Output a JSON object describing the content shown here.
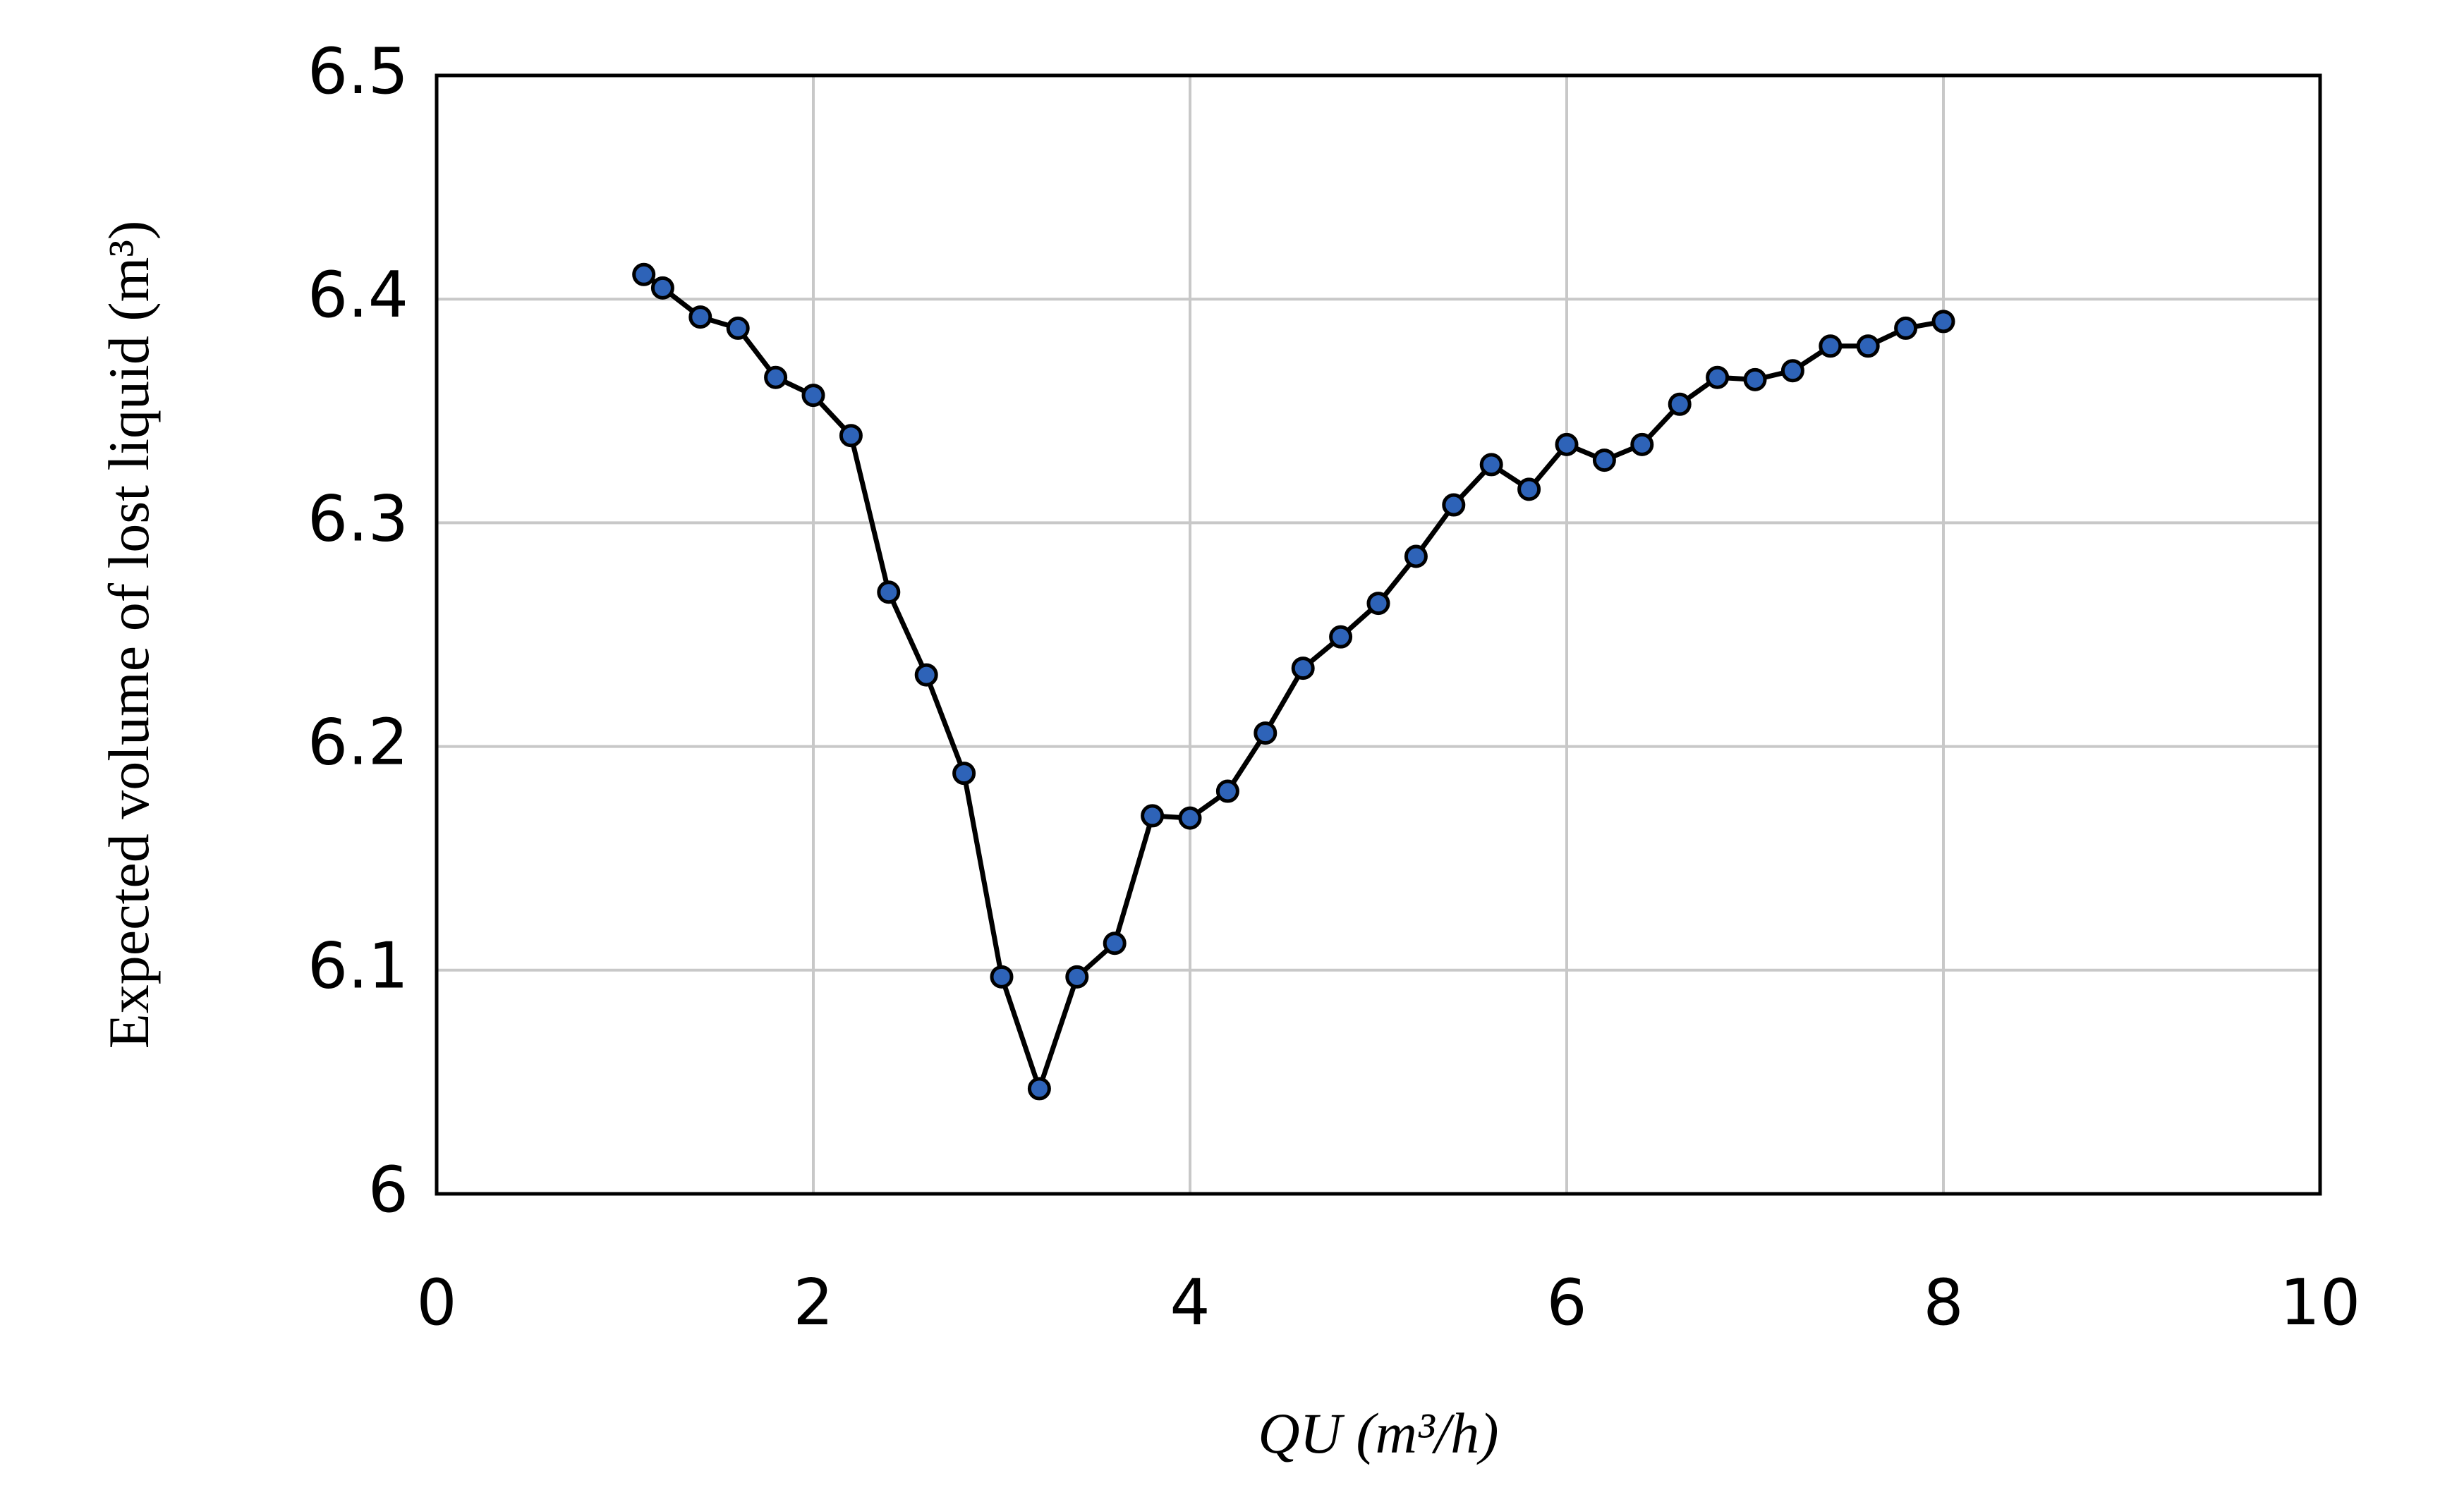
{
  "chart_data": {
    "type": "line",
    "x_label": "QU (m³/h)",
    "y_label": "Expected volume of lost liquid (m³)",
    "x": [
      1.1,
      1.2,
      1.4,
      1.6,
      1.8,
      2.0,
      2.2,
      2.4,
      2.6,
      2.8,
      3.0,
      3.2,
      3.4,
      3.6,
      3.8,
      4.0,
      4.2,
      4.4,
      4.6,
      4.8,
      5.0,
      5.2,
      5.4,
      5.6,
      5.8,
      6.0,
      6.2,
      6.4,
      6.6,
      6.8,
      7.0,
      7.2,
      7.4,
      7.6,
      7.8,
      8.0
    ],
    "series": [
      {
        "color": "#2e63b8",
        "values": [
          6.411,
          6.405,
          6.392,
          6.387,
          6.365,
          6.357,
          6.339,
          6.269,
          6.232,
          6.188,
          6.097,
          6.047,
          6.097,
          6.112,
          6.169,
          6.168,
          6.18,
          6.206,
          6.235,
          6.249,
          6.264,
          6.285,
          6.308,
          6.326,
          6.315,
          6.335,
          6.328,
          6.335,
          6.353,
          6.365,
          6.364,
          6.368,
          6.379,
          6.379,
          6.387,
          6.39
        ]
      }
    ],
    "xlim": [
      0,
      10
    ],
    "xticks": [
      0,
      2,
      4,
      6,
      8,
      10
    ],
    "ylim": [
      6,
      6.5
    ],
    "yticks": [
      6,
      6.1,
      6.2,
      6.3,
      6.4,
      6.5
    ],
    "grid": true
  }
}
